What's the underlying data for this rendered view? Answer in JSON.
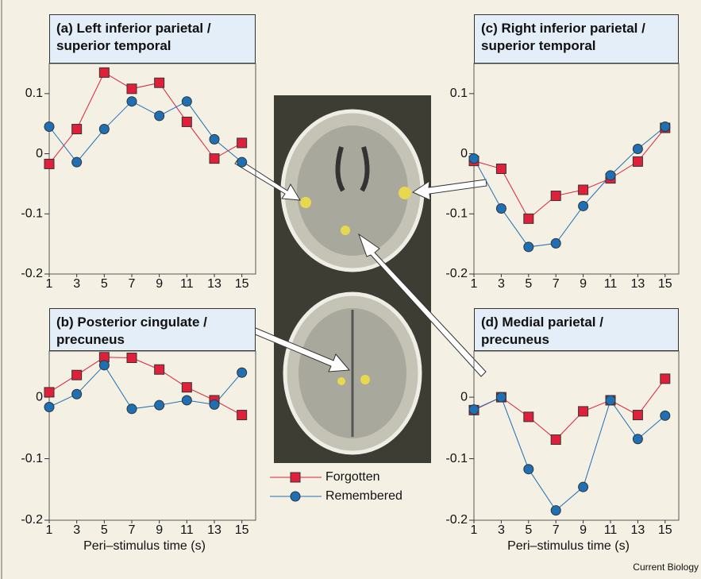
{
  "chart_data": [
    {
      "type": "line",
      "title": "(a) Left inferior parietal / superior temporal",
      "x": [
        1,
        3,
        5,
        7,
        9,
        11,
        13,
        15
      ],
      "xlim": [
        1,
        16
      ],
      "xticks": [
        1,
        3,
        5,
        7,
        9,
        11,
        13,
        15
      ],
      "ylim": [
        -0.2,
        0.15
      ],
      "yticks": [
        0.1,
        0,
        -0.1,
        -0.2
      ],
      "series": [
        {
          "name": "Forgotten",
          "color": "#e0203a",
          "values": [
            -0.017,
            0.041,
            0.135,
            0.108,
            0.118,
            0.053,
            -0.008,
            0.018
          ]
        },
        {
          "name": "Remembered",
          "color": "#1f6fb5",
          "values": [
            0.045,
            -0.014,
            0.041,
            0.087,
            0.063,
            0.087,
            0.024,
            -0.014
          ]
        }
      ]
    },
    {
      "type": "line",
      "title": "(b) Posterior cingulate / precuneus",
      "x_label": "Peri–stimulus time (s)",
      "x": [
        1,
        3,
        5,
        7,
        9,
        11,
        13,
        15
      ],
      "xlim": [
        1,
        16
      ],
      "xticks": [
        1,
        3,
        5,
        7,
        9,
        11,
        13,
        15
      ],
      "ylim": [
        -0.2,
        0.075
      ],
      "yticks": [
        0,
        -0.1,
        -0.2
      ],
      "series": [
        {
          "name": "Forgotten",
          "color": "#e0203a",
          "values": [
            0.008,
            0.036,
            0.065,
            0.064,
            0.045,
            0.016,
            -0.005,
            -0.029
          ]
        },
        {
          "name": "Remembered",
          "color": "#1f6fb5",
          "values": [
            -0.016,
            0.005,
            0.052,
            -0.019,
            -0.013,
            -0.005,
            -0.012,
            0.04
          ]
        }
      ]
    },
    {
      "type": "line",
      "title": "(c) Right inferior parietal / superior temporal",
      "x": [
        1,
        3,
        5,
        7,
        9,
        11,
        13,
        15
      ],
      "xlim": [
        1,
        16
      ],
      "xticks": [
        1,
        3,
        5,
        7,
        9,
        11,
        13,
        15
      ],
      "ylim": [
        -0.2,
        0.15
      ],
      "yticks": [
        0.1,
        0,
        -0.1,
        -0.2
      ],
      "series": [
        {
          "name": "Forgotten",
          "color": "#e0203a",
          "values": [
            -0.012,
            -0.025,
            -0.108,
            -0.07,
            -0.06,
            -0.041,
            -0.013,
            0.043
          ]
        },
        {
          "name": "Remembered",
          "color": "#1f6fb5",
          "values": [
            -0.008,
            -0.091,
            -0.155,
            -0.149,
            -0.087,
            -0.036,
            0.008,
            0.045
          ]
        }
      ]
    },
    {
      "type": "line",
      "title": "(d) Medial parietal / precuneus",
      "x_label": "Peri–stimulus time (s)",
      "x": [
        1,
        3,
        5,
        7,
        9,
        11,
        13,
        15
      ],
      "xlim": [
        1,
        16
      ],
      "xticks": [
        1,
        3,
        5,
        7,
        9,
        11,
        13,
        15
      ],
      "ylim": [
        -0.2,
        0.075
      ],
      "yticks": [
        0,
        -0.1,
        -0.2
      ],
      "series": [
        {
          "name": "Forgotten",
          "color": "#e0203a",
          "values": [
            -0.021,
            0,
            -0.032,
            -0.069,
            -0.023,
            -0.005,
            -0.029,
            0.03
          ]
        },
        {
          "name": "Remembered",
          "color": "#1f6fb5",
          "values": [
            -0.02,
            0,
            -0.117,
            -0.184,
            -0.146,
            -0.005,
            -0.068,
            -0.03
          ]
        }
      ]
    }
  ],
  "credit": "Current Biology"
}
